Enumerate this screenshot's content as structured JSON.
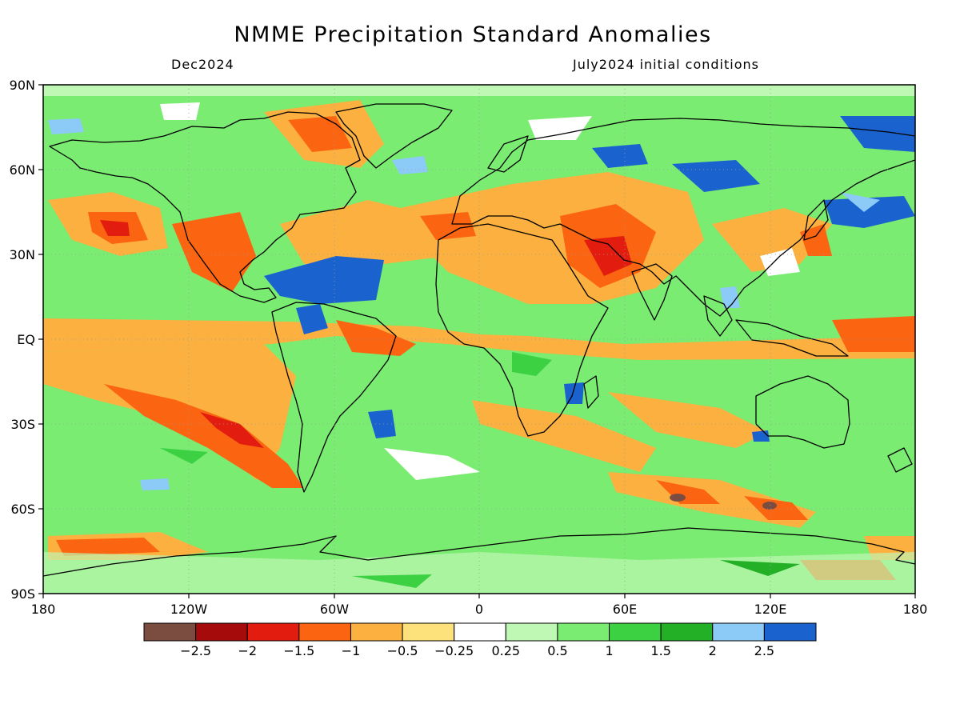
{
  "title": "NMME Precipitation Standard Anomalies",
  "subtitle_left": "Dec2024",
  "subtitle_right": "July2024 initial conditions",
  "lat_labels": [
    "90N",
    "60N",
    "30N",
    "EQ",
    "30S",
    "60S",
    "90S"
  ],
  "lon_labels": [
    "180",
    "120W",
    "60W",
    "0",
    "60E",
    "120E",
    "180"
  ],
  "colorbar": {
    "colors": [
      "#7b4d41",
      "#a50b0a",
      "#e21c0e",
      "#fb6410",
      "#fbb03f",
      "#fde17a",
      "#ffffff",
      "#bff7b4",
      "#79ec71",
      "#3cd143",
      "#23af26",
      "#8ccbf8",
      "#1a63cf"
    ],
    "tick_labels": [
      "−2.5",
      "−2",
      "−1.5",
      "−1",
      "−0.5",
      "−0.25",
      "0.25",
      "0.5",
      "1",
      "1.5",
      "2",
      "2.5"
    ]
  },
  "colors": {
    "ocean_base": "#79ec71",
    "coastline": "#000000",
    "gridline": "#9a9a9a"
  }
}
